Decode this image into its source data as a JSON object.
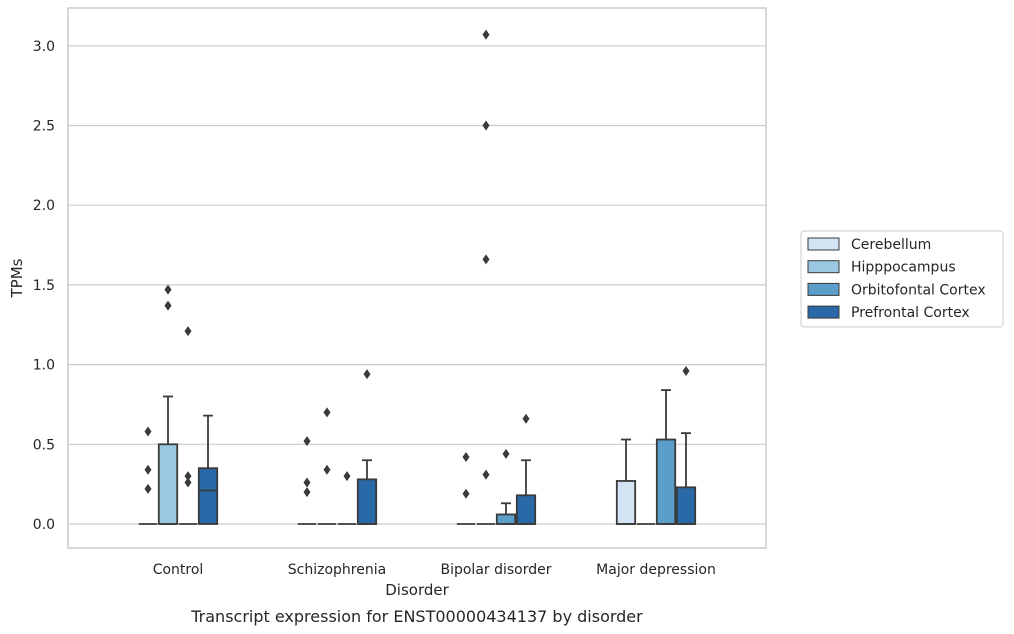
{
  "chart_data": {
    "type": "box",
    "caption": "Transcript expression for ENST00000434137 by disorder",
    "xlabel": "Disorder",
    "ylabel": "TPMs",
    "ylim": [
      -0.15,
      3.23
    ],
    "yticks": [
      "0.0",
      "0.5",
      "1.0",
      "1.5",
      "2.0",
      "2.5",
      "3.0"
    ],
    "ytick_values": [
      0,
      0.5,
      1.0,
      1.5,
      2.0,
      2.5,
      3.0
    ],
    "grid": "horizontal",
    "legend_position": "right",
    "categories": [
      "Control",
      "Schizophrenia",
      "Bipolar disorder",
      "Major depression"
    ],
    "series": [
      {
        "name": "Cerebellum",
        "color": "#d2e3f3",
        "boxes": [
          {
            "q1": 0,
            "median": 0,
            "q3": 0,
            "whislo": 0,
            "whishi": 0,
            "fliers": [
              0.22,
              0.34,
              0.58
            ]
          },
          {
            "q1": 0,
            "median": 0,
            "q3": 0,
            "whislo": 0,
            "whishi": 0,
            "fliers": [
              0.2,
              0.26,
              0.52
            ]
          },
          {
            "q1": 0,
            "median": 0,
            "q3": 0,
            "whislo": 0,
            "whishi": 0,
            "fliers": [
              0.19,
              0.42
            ]
          },
          {
            "q1": 0,
            "median": 0,
            "q3": 0.27,
            "whislo": 0,
            "whishi": 0.53,
            "fliers": []
          }
        ]
      },
      {
        "name": "Hipppocampus",
        "color": "#9ac8e0",
        "boxes": [
          {
            "q1": 0,
            "median": 0,
            "q3": 0.5,
            "whislo": 0,
            "whishi": 0.8,
            "fliers": [
              1.37,
              1.47
            ]
          },
          {
            "q1": 0,
            "median": 0,
            "q3": 0,
            "whislo": 0,
            "whishi": 0,
            "fliers": [
              0.34,
              0.7
            ]
          },
          {
            "q1": 0,
            "median": 0,
            "q3": 0,
            "whislo": 0,
            "whishi": 0,
            "fliers": [
              0.31,
              1.66,
              2.5,
              3.07
            ]
          },
          {
            "q1": 0,
            "median": 0,
            "q3": 0,
            "whislo": 0,
            "whishi": 0,
            "fliers": []
          }
        ]
      },
      {
        "name": "Orbitofontal Cortex",
        "color": "#5a9ec9",
        "boxes": [
          {
            "q1": 0,
            "median": 0,
            "q3": 0,
            "whislo": 0,
            "whishi": 0,
            "fliers": [
              0.26,
              0.3,
              1.21
            ]
          },
          {
            "q1": 0,
            "median": 0,
            "q3": 0,
            "whislo": 0,
            "whishi": 0,
            "fliers": [
              0.3
            ]
          },
          {
            "q1": 0,
            "median": 0,
            "q3": 0.06,
            "whislo": 0,
            "whishi": 0.13,
            "fliers": [
              0.44
            ]
          },
          {
            "q1": 0,
            "median": 0,
            "q3": 0.53,
            "whislo": 0,
            "whishi": 0.84,
            "fliers": []
          }
        ]
      },
      {
        "name": "Prefrontal Cortex",
        "color": "#2a69a8",
        "boxes": [
          {
            "q1": 0,
            "median": 0.21,
            "q3": 0.35,
            "whislo": 0,
            "whishi": 0.68,
            "fliers": []
          },
          {
            "q1": 0,
            "median": 0,
            "q3": 0.28,
            "whislo": 0,
            "whishi": 0.4,
            "fliers": [
              0.94
            ]
          },
          {
            "q1": 0,
            "median": 0,
            "q3": 0.18,
            "whislo": 0,
            "whishi": 0.4,
            "fliers": [
              0.66
            ]
          },
          {
            "q1": 0,
            "median": 0,
            "q3": 0.23,
            "whislo": 0,
            "whishi": 0.57,
            "fliers": [
              0.96
            ]
          }
        ]
      }
    ]
  }
}
